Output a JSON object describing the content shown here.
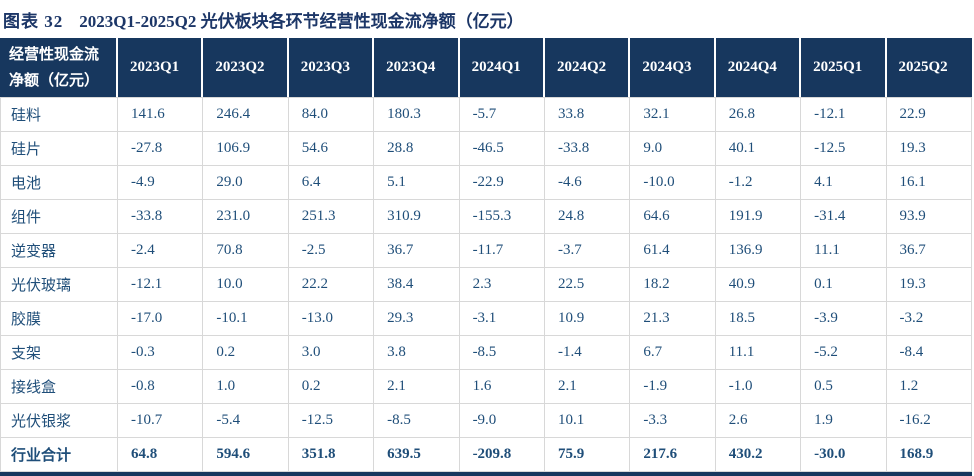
{
  "title": {
    "figure_label": "图表 32",
    "text": "2023Q1-2025Q2 光伏板块各环节经营性现金流净额（亿元）"
  },
  "colors": {
    "header_bg": "#17375E",
    "data_text": "#1F4E79",
    "title_text": "#1C3667",
    "grid_line": "#D8D8D8"
  },
  "chart_data": {
    "type": "table",
    "title": "图表 32 2023Q1-2025Q2 光伏板块各环节经营性现金流净额（亿元）",
    "unit": "亿元",
    "corner_header": [
      "经营性现金流",
      "净额（亿元）"
    ],
    "columns": [
      "2023Q1",
      "2023Q2",
      "2023Q3",
      "2023Q4",
      "2024Q1",
      "2024Q2",
      "2024Q3",
      "2024Q4",
      "2025Q1",
      "2025Q2"
    ],
    "rows": [
      {
        "label": "硅料",
        "values": [
          "141.6",
          "246.4",
          "84.0",
          "180.3",
          "-5.7",
          "33.8",
          "32.1",
          "26.8",
          "-12.1",
          "22.9"
        ]
      },
      {
        "label": "硅片",
        "values": [
          "-27.8",
          "106.9",
          "54.6",
          "28.8",
          "-46.5",
          "-33.8",
          "9.0",
          "40.1",
          "-12.5",
          "19.3"
        ]
      },
      {
        "label": "电池",
        "values": [
          "-4.9",
          "29.0",
          "6.4",
          "5.1",
          "-22.9",
          "-4.6",
          "-10.0",
          "-1.2",
          "4.1",
          "16.1"
        ]
      },
      {
        "label": "组件",
        "values": [
          "-33.8",
          "231.0",
          "251.3",
          "310.9",
          "-155.3",
          "24.8",
          "64.6",
          "191.9",
          "-31.4",
          "93.9"
        ]
      },
      {
        "label": "逆变器",
        "values": [
          "-2.4",
          "70.8",
          "-2.5",
          "36.7",
          "-11.7",
          "-3.7",
          "61.4",
          "136.9",
          "11.1",
          "36.7"
        ]
      },
      {
        "label": "光伏玻璃",
        "values": [
          "-12.1",
          "10.0",
          "22.2",
          "38.4",
          "2.3",
          "22.5",
          "18.2",
          "40.9",
          "0.1",
          "19.3"
        ]
      },
      {
        "label": "胶膜",
        "values": [
          "-17.0",
          "-10.1",
          "-13.0",
          "29.3",
          "-3.1",
          "10.9",
          "21.3",
          "18.5",
          "-3.9",
          "-3.2"
        ]
      },
      {
        "label": "支架",
        "values": [
          "-0.3",
          "0.2",
          "3.0",
          "3.8",
          "-8.5",
          "-1.4",
          "6.7",
          "11.1",
          "-5.2",
          "-8.4"
        ]
      },
      {
        "label": "接线盒",
        "values": [
          "-0.8",
          "1.0",
          "0.2",
          "2.1",
          "1.6",
          "2.1",
          "-1.9",
          "-1.0",
          "0.5",
          "1.2"
        ]
      },
      {
        "label": "光伏银浆",
        "values": [
          "-10.7",
          "-5.4",
          "-12.5",
          "-8.5",
          "-9.0",
          "10.1",
          "-3.3",
          "2.6",
          "1.9",
          "-16.2"
        ]
      },
      {
        "label": "行业合计",
        "values": [
          "64.8",
          "594.6",
          "351.8",
          "639.5",
          "-209.8",
          "75.9",
          "217.6",
          "430.2",
          "-30.0",
          "168.9"
        ],
        "is_total": true
      }
    ]
  }
}
